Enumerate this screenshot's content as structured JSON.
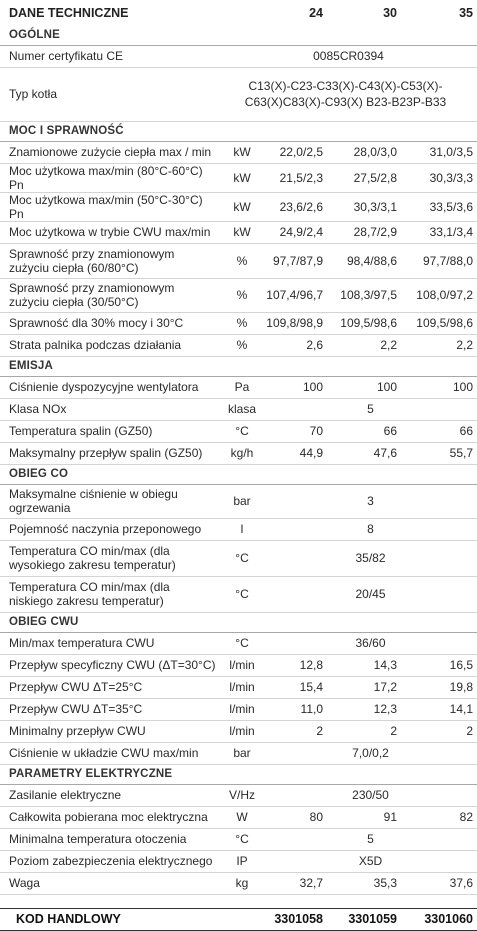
{
  "header": {
    "title": "DANE TECHNICZNE",
    "models": [
      "24",
      "30",
      "35"
    ]
  },
  "sections": {
    "ogolne": {
      "title": "OGÓLNE",
      "cert_label": "Numer certyfikatu CE",
      "cert_value": "0085CR0394",
      "typ_label": "Typ kotła",
      "typ_value": "C13(X)-C23-C33(X)-C43(X)-C53(X)-C63(X)C83(X)-C93(X) B23-B23P-B33"
    },
    "moc": {
      "title": "MOC I SPRAWNOŚĆ",
      "rows": [
        {
          "label": "Znamionowe zużycie ciepła max / min",
          "unit": "kW",
          "values": [
            "22,0/2,5",
            "28,0/3,0",
            "31,0/3,5"
          ]
        },
        {
          "label": "Moc użytkowa max/min (80°C-60°C) Pn",
          "unit": "kW",
          "values": [
            "21,5/2,3",
            "27,5/2,8",
            "30,3/3,3"
          ]
        },
        {
          "label": "Moc użytkowa max/min (50°C-30°C) Pn",
          "unit": "kW",
          "values": [
            "23,6/2,6",
            "30,3/3,1",
            "33,5/3,6"
          ]
        },
        {
          "label": "Moc użytkowa w trybie CWU max/min",
          "unit": "kW",
          "values": [
            "24,9/2,4",
            "28,7/2,9",
            "33,1/3,4"
          ]
        },
        {
          "label": "Sprawność przy znamionowym zużyciu ciepła (60/80°C)",
          "unit": "%",
          "values": [
            "97,7/87,9",
            "98,4/88,6",
            "97,7/88,0"
          ]
        },
        {
          "label": "Sprawność przy znamionowym zużyciu ciepła (30/50°C)",
          "unit": "%",
          "values": [
            "107,4/96,7",
            "108,3/97,5",
            "108,0/97,2"
          ]
        },
        {
          "label": "Sprawność dla 30% mocy i 30°C",
          "unit": "%",
          "values": [
            "109,8/98,9",
            "109,5/98,6",
            "109,5/98,6"
          ]
        },
        {
          "label": "Strata palnika podczas działania",
          "unit": "%",
          "values": [
            "2,6",
            "2,2",
            "2,2"
          ]
        }
      ]
    },
    "emisja": {
      "title": "EMISJA",
      "rows": [
        {
          "label": "Ciśnienie dyspozycyjne wentylatora",
          "unit": "Pa",
          "values": [
            "100",
            "100",
            "100"
          ]
        },
        {
          "label": "Temperatura spalin (GZ50)",
          "unit": "°C",
          "values": [
            "70",
            "66",
            "66"
          ]
        },
        {
          "label": "Maksymalny przepływ spalin (GZ50)",
          "unit": "kg/h",
          "values": [
            "44,9",
            "47,6",
            "55,7"
          ]
        }
      ],
      "nox_label": "Klasa NOx",
      "nox_unit": "klasa",
      "nox_value": "5"
    },
    "obieg_co": {
      "title": "OBIEG CO",
      "rows": [
        {
          "label": "Maksymalne ciśnienie w obiegu ogrzewania",
          "unit": "bar",
          "value": "3"
        },
        {
          "label": "Pojemność naczynia przeponowego",
          "unit": "l",
          "value": "8"
        },
        {
          "label": "Temperatura CO min/max (dla wysokiego zakresu temperatur)",
          "unit": "°C",
          "value": "35/82"
        },
        {
          "label": "Temperatura CO min/max (dla niskiego zakresu temperatur)",
          "unit": "°C",
          "value": "20/45"
        }
      ]
    },
    "obieg_cwu": {
      "title": "OBIEG CWU",
      "minmax": {
        "label": "Min/max temperatura CWU",
        "unit": "°C",
        "value": "36/60"
      },
      "rows": [
        {
          "label": "Przepływ specyficzny CWU (ΔT=30°C)",
          "unit": "l/min",
          "values": [
            "12,8",
            "14,3",
            "16,5"
          ]
        },
        {
          "label": "Przepływ CWU ΔT=25°C",
          "unit": "l/min",
          "values": [
            "15,4",
            "17,2",
            "19,8"
          ]
        },
        {
          "label": "Przepływ CWU ΔT=35°C",
          "unit": "l/min",
          "values": [
            "11,0",
            "12,3",
            "14,1"
          ]
        },
        {
          "label": "Minimalny przepływ CWU",
          "unit": "l/min",
          "values": [
            "2",
            "2",
            "2"
          ]
        }
      ],
      "pressure": {
        "label": "Ciśnienie w układzie CWU max/min",
        "unit": "bar",
        "value": "7,0/0,2"
      }
    },
    "elektryczne": {
      "title": "PARAMETRY ELEKTRYCZNE",
      "zasilanie": {
        "label": "Zasilanie elektryczne",
        "unit": "V/Hz",
        "value": "230/50"
      },
      "moc": {
        "label": "Całkowita pobierana moc elektryczna",
        "unit": "W",
        "values": [
          "80",
          "91",
          "82"
        ]
      },
      "temp": {
        "label": "Minimalna temperatura otoczenia",
        "unit": "°C",
        "value": "5"
      },
      "ip": {
        "label": "Poziom zabezpieczenia elektrycznego",
        "unit": "IP",
        "value": "X5D"
      },
      "waga": {
        "label": "Waga",
        "unit": "kg",
        "values": [
          "32,7",
          "35,3",
          "37,6"
        ]
      }
    }
  },
  "footer": {
    "label": "KOD HANDLOWY",
    "codes": [
      "3301058",
      "3301059",
      "3301060"
    ]
  }
}
